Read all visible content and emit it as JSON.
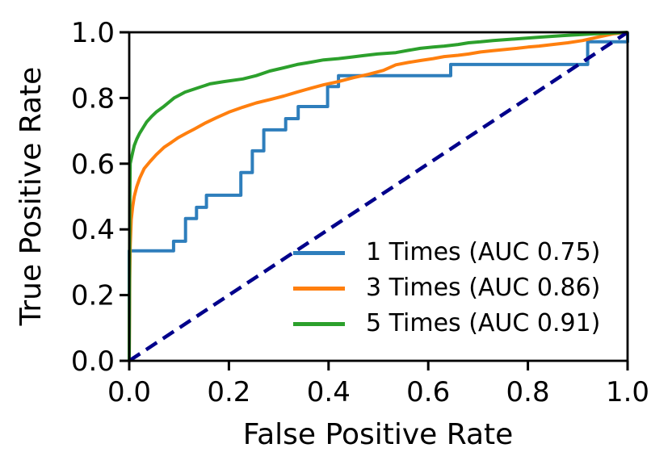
{
  "chart_data": {
    "type": "line",
    "title": "",
    "xlabel": "False Positive Rate",
    "ylabel": "True Positive Rate",
    "xlim": [
      0.0,
      1.0
    ],
    "ylim": [
      0.0,
      1.0
    ],
    "xticks": [
      "0.0",
      "0.2",
      "0.4",
      "0.6",
      "0.8",
      "1.0"
    ],
    "yticks": [
      "0.0",
      "0.2",
      "0.4",
      "0.6",
      "0.8",
      "1.0"
    ],
    "grid": false,
    "legend_position": "lower right",
    "colors": {
      "curve1": "#2e7ebc",
      "curve3": "#ff7f0e",
      "curve5": "#2ca02c",
      "chance": "#00008b",
      "axes": "#000000"
    },
    "series": [
      {
        "name": "1 Times (AUC 0.75)",
        "auc": 0.75,
        "color": "#2e7ebc",
        "style": "solid",
        "drawstyle": "steps",
        "legend": true,
        "points": [
          [
            0,
            0
          ],
          [
            0,
            0.335
          ],
          [
            0.089,
            0.335
          ],
          [
            0.089,
            0.364
          ],
          [
            0.113,
            0.364
          ],
          [
            0.113,
            0.433
          ],
          [
            0.135,
            0.433
          ],
          [
            0.135,
            0.467
          ],
          [
            0.155,
            0.467
          ],
          [
            0.155,
            0.504
          ],
          [
            0.224,
            0.504
          ],
          [
            0.224,
            0.573
          ],
          [
            0.247,
            0.573
          ],
          [
            0.247,
            0.639
          ],
          [
            0.27,
            0.639
          ],
          [
            0.27,
            0.703
          ],
          [
            0.314,
            0.703
          ],
          [
            0.314,
            0.737
          ],
          [
            0.339,
            0.737
          ],
          [
            0.339,
            0.774
          ],
          [
            0.398,
            0.774
          ],
          [
            0.398,
            0.835
          ],
          [
            0.42,
            0.835
          ],
          [
            0.42,
            0.868
          ],
          [
            0.645,
            0.868
          ],
          [
            0.645,
            0.902
          ],
          [
            0.92,
            0.902
          ],
          [
            0.92,
            0.971
          ],
          [
            1,
            0.971
          ],
          [
            1,
            1
          ]
        ]
      },
      {
        "name": "3 Times (AUC 0.86)",
        "auc": 0.86,
        "color": "#ff7f0e",
        "style": "solid",
        "drawstyle": "default",
        "legend": true,
        "points": [
          [
            0,
            0
          ],
          [
            0.001,
            0.25
          ],
          [
            0.002,
            0.35
          ],
          [
            0.004,
            0.43
          ],
          [
            0.007,
            0.47
          ],
          [
            0.01,
            0.5
          ],
          [
            0.015,
            0.53
          ],
          [
            0.021,
            0.556
          ],
          [
            0.03,
            0.585
          ],
          [
            0.042,
            0.607
          ],
          [
            0.054,
            0.627
          ],
          [
            0.07,
            0.65
          ],
          [
            0.085,
            0.665
          ],
          [
            0.098,
            0.679
          ],
          [
            0.115,
            0.693
          ],
          [
            0.13,
            0.705
          ],
          [
            0.153,
            0.724
          ],
          [
            0.175,
            0.74
          ],
          [
            0.2,
            0.757
          ],
          [
            0.228,
            0.772
          ],
          [
            0.255,
            0.785
          ],
          [
            0.282,
            0.795
          ],
          [
            0.31,
            0.806
          ],
          [
            0.337,
            0.818
          ],
          [
            0.365,
            0.83
          ],
          [
            0.39,
            0.84
          ],
          [
            0.42,
            0.85
          ],
          [
            0.45,
            0.862
          ],
          [
            0.48,
            0.872
          ],
          [
            0.51,
            0.884
          ],
          [
            0.535,
            0.901
          ],
          [
            0.56,
            0.908
          ],
          [
            0.584,
            0.914
          ],
          [
            0.61,
            0.92
          ],
          [
            0.632,
            0.926
          ],
          [
            0.66,
            0.93
          ],
          [
            0.681,
            0.934
          ],
          [
            0.705,
            0.94
          ],
          [
            0.73,
            0.944
          ],
          [
            0.755,
            0.948
          ],
          [
            0.778,
            0.951
          ],
          [
            0.8,
            0.955
          ],
          [
            0.822,
            0.958
          ],
          [
            0.85,
            0.963
          ],
          [
            0.88,
            0.968
          ],
          [
            0.91,
            0.975
          ],
          [
            0.94,
            0.985
          ],
          [
            0.97,
            0.995
          ],
          [
            1,
            1
          ]
        ]
      },
      {
        "name": "5 Times (AUC 0.91)",
        "auc": 0.91,
        "color": "#2ca02c",
        "style": "solid",
        "drawstyle": "default",
        "legend": true,
        "points": [
          [
            0,
            0
          ],
          [
            0.001,
            0.45
          ],
          [
            0.002,
            0.6
          ],
          [
            0.004,
            0.615
          ],
          [
            0.007,
            0.635
          ],
          [
            0.01,
            0.655
          ],
          [
            0.015,
            0.675
          ],
          [
            0.021,
            0.693
          ],
          [
            0.028,
            0.71
          ],
          [
            0.035,
            0.727
          ],
          [
            0.045,
            0.744
          ],
          [
            0.054,
            0.757
          ],
          [
            0.07,
            0.775
          ],
          [
            0.09,
            0.8
          ],
          [
            0.112,
            0.818
          ],
          [
            0.14,
            0.832
          ],
          [
            0.162,
            0.843
          ],
          [
            0.19,
            0.85
          ],
          [
            0.228,
            0.858
          ],
          [
            0.255,
            0.868
          ],
          [
            0.282,
            0.882
          ],
          [
            0.31,
            0.892
          ],
          [
            0.337,
            0.902
          ],
          [
            0.365,
            0.909
          ],
          [
            0.39,
            0.916
          ],
          [
            0.42,
            0.92
          ],
          [
            0.444,
            0.924
          ],
          [
            0.47,
            0.929
          ],
          [
            0.498,
            0.934
          ],
          [
            0.535,
            0.938
          ],
          [
            0.56,
            0.945
          ],
          [
            0.584,
            0.951
          ],
          [
            0.61,
            0.955
          ],
          [
            0.632,
            0.958
          ],
          [
            0.66,
            0.963
          ],
          [
            0.681,
            0.968
          ],
          [
            0.705,
            0.971
          ],
          [
            0.73,
            0.975
          ],
          [
            0.778,
            0.98
          ],
          [
            0.822,
            0.985
          ],
          [
            0.87,
            0.99
          ],
          [
            0.93,
            0.995
          ],
          [
            1,
            1
          ]
        ]
      },
      {
        "name": "chance-diagonal",
        "color": "#00008b",
        "style": "dashed",
        "drawstyle": "default",
        "legend": false,
        "points": [
          [
            0,
            0
          ],
          [
            1,
            1
          ]
        ]
      }
    ]
  }
}
